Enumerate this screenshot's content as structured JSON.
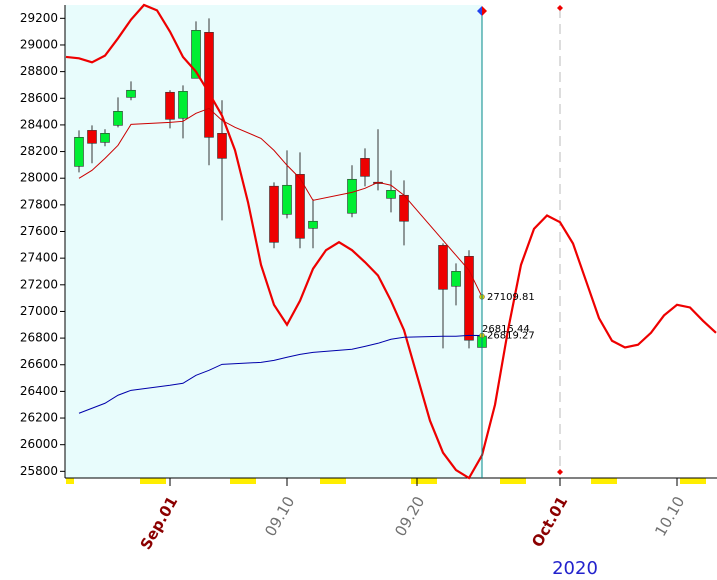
{
  "chart_data": {
    "type": "candlestick",
    "x": [
      238,
      239,
      240,
      241,
      242,
      245,
      246,
      247,
      248,
      249,
      253,
      254,
      255,
      256,
      259,
      260,
      261,
      262,
      263,
      266,
      267,
      268,
      269
    ],
    "open": [
      28089,
      28359,
      28269,
      28397,
      28607,
      28645,
      28450,
      28750,
      29095,
      28337,
      27940,
      27729,
      28029,
      27624,
      27737,
      28149,
      27970,
      27849,
      27872,
      27496,
      27189,
      27414,
      26730
    ],
    "high": [
      28359,
      28397,
      28367,
      28607,
      28727,
      28660,
      28697,
      29177,
      29200,
      28585,
      27969,
      28209,
      28194,
      27842,
      28097,
      28224,
      28367,
      28059,
      27984,
      27511,
      27361,
      27459,
      26859
    ],
    "low": [
      28044,
      28112,
      28240,
      28382,
      28585,
      28374,
      28299,
      28750,
      28097,
      27684,
      27474,
      27699,
      27474,
      27474,
      27707,
      27939,
      27909,
      27744,
      27496,
      26723,
      27046,
      26723,
      26709
    ],
    "close": [
      28307,
      28262,
      28337,
      28502,
      28660,
      28442,
      28652,
      29110,
      28307,
      28149,
      27519,
      27947,
      27549,
      27677,
      27992,
      28014,
      27960,
      27909,
      27677,
      27166,
      27301,
      26784,
      26815.44
    ],
    "close_labels": [
      null,
      null,
      null,
      null,
      null,
      null,
      null,
      null,
      null,
      null,
      null,
      null,
      null,
      null,
      null,
      null,
      null,
      null,
      null,
      null,
      null,
      null,
      "26815.44"
    ],
    "up_color": "#00ee33",
    "down_color": "#ee0000",
    "lines": [
      {
        "color": "#ee0000",
        "width": 2.2,
        "x": [
          237,
          238,
          239,
          240,
          241,
          242,
          243,
          244,
          245,
          246,
          247,
          248,
          249,
          250,
          251,
          252,
          253,
          254,
          255,
          256,
          257,
          258,
          259,
          260,
          261,
          262,
          263,
          264,
          265,
          266,
          267,
          268,
          269,
          270,
          271,
          272,
          273,
          274,
          275,
          276,
          277,
          278,
          279,
          280,
          281,
          282,
          283,
          284,
          285,
          286,
          287
        ],
        "values": [
          28910,
          28900,
          28870,
          28920,
          29050,
          29190,
          29300,
          29260,
          29100,
          28910,
          28800,
          28640,
          28470,
          28210,
          27820,
          27350,
          27050,
          26900,
          27080,
          27320,
          27460,
          27520,
          27460,
          27370,
          27270,
          27080,
          26860,
          26520,
          26180,
          25940,
          25810,
          25750,
          25920,
          26300,
          26860,
          27350,
          27620,
          27720,
          27670,
          27510,
          27230,
          26950,
          26780,
          26730,
          26750,
          26840,
          26970,
          27050,
          27030,
          26930,
          26840
        ]
      },
      {
        "color": "#cc0000",
        "width": 1,
        "x": [
          238,
          239,
          240,
          241,
          242,
          245,
          246,
          247,
          248,
          249,
          250,
          252,
          253,
          254,
          255,
          256,
          259,
          260,
          261,
          262,
          263,
          264,
          266,
          267,
          268,
          269
        ],
        "values": [
          27999,
          28059,
          28149,
          28247,
          28404,
          28419,
          28427,
          28487,
          28524,
          28434,
          28382,
          28299,
          28209,
          28097,
          27999,
          27834,
          27894,
          27924,
          27969,
          27947,
          27872,
          27759,
          27534,
          27421,
          27309,
          27109.81
        ],
        "value_labels": [
          null,
          null,
          null,
          null,
          null,
          null,
          null,
          null,
          null,
          null,
          null,
          null,
          null,
          null,
          null,
          null,
          null,
          null,
          null,
          null,
          null,
          null,
          null,
          null,
          null,
          "27109.81"
        ]
      },
      {
        "color": "#0000aa",
        "width": 1,
        "x": [
          238,
          240,
          241,
          242,
          245,
          246,
          247,
          248,
          249,
          252,
          253,
          254,
          255,
          256,
          259,
          260,
          261,
          262,
          263,
          266,
          267,
          268,
          269
        ],
        "values": [
          26236,
          26311,
          26371,
          26408,
          26446,
          26461,
          26521,
          26558,
          26603,
          26618,
          26633,
          26656,
          26678,
          26693,
          26716,
          26738,
          26761,
          26791,
          26806,
          26814,
          26814,
          26820,
          26819.27
        ],
        "value_labels": [
          null,
          null,
          null,
          null,
          null,
          null,
          null,
          null,
          null,
          null,
          null,
          null,
          null,
          null,
          null,
          null,
          null,
          null,
          null,
          null,
          null,
          null,
          "26819.27"
        ]
      }
    ],
    "cursor_x": 269,
    "dashed_x": 275,
    "xlim": [
      237,
      287
    ],
    "xticks": [
      {
        "value": 245,
        "label": "Sep.01",
        "color": "#8b0000"
      },
      {
        "value": 254,
        "label": "09.10",
        "color": "#707070"
      },
      {
        "value": 264,
        "label": "09.20",
        "color": "#707070"
      },
      {
        "value": 275,
        "label": "Oct.01",
        "color": "#8b0000"
      },
      {
        "value": 284,
        "label": "10.10",
        "color": "#707070"
      }
    ],
    "ylim": [
      25750,
      29300
    ],
    "yticks": [
      25800,
      26000,
      26200,
      26400,
      26600,
      26800,
      27000,
      27200,
      27400,
      27600,
      27800,
      28000,
      28200,
      28400,
      28600,
      28800,
      29000,
      29200
    ],
    "year_label": "2020"
  }
}
